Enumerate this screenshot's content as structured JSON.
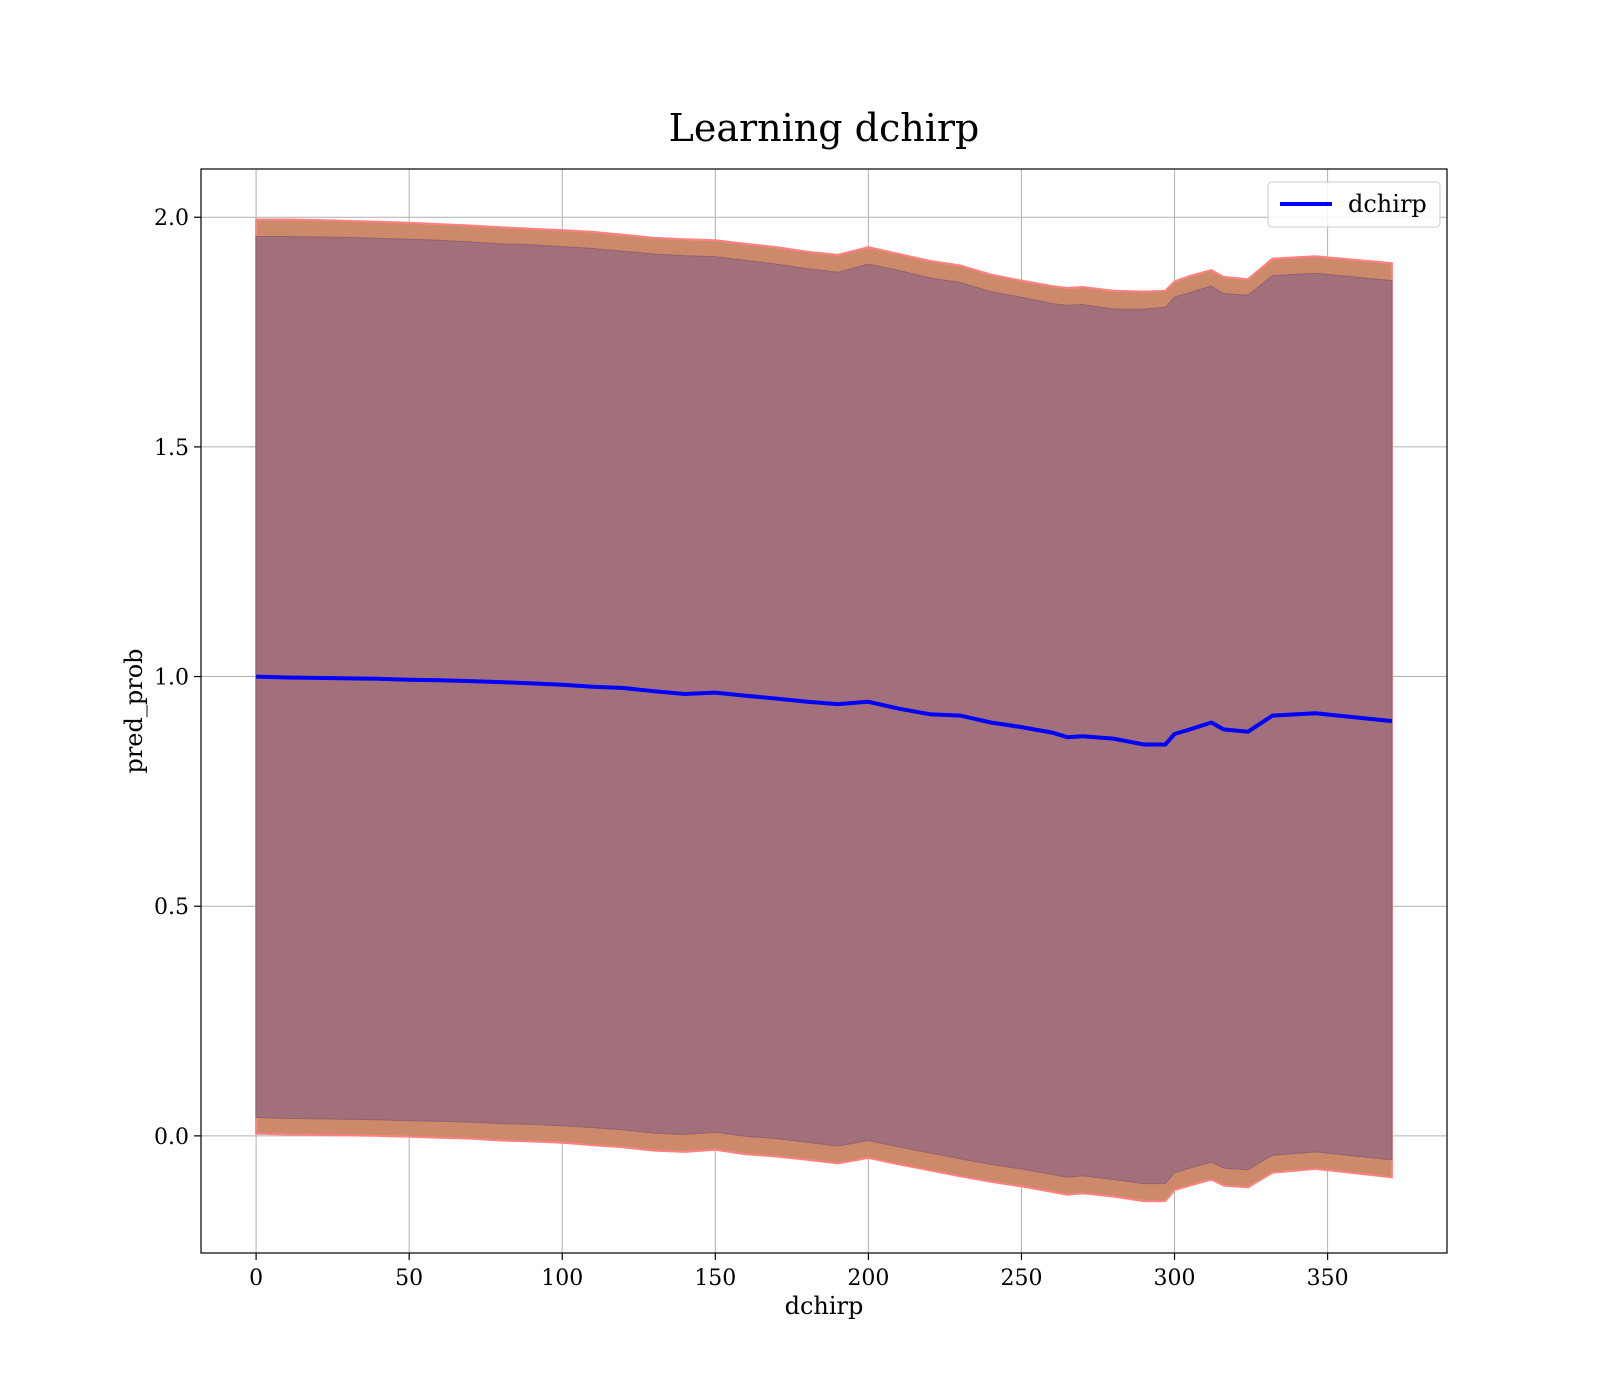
{
  "chart_data": {
    "type": "line",
    "title": "Learning dchirp",
    "xlabel": "dchirp",
    "ylabel": "pred_prob",
    "xlim": [
      -18,
      389
    ],
    "ylim": [
      -0.255,
      2.105
    ],
    "xticks": [
      "0",
      "50",
      "100",
      "150",
      "200",
      "250",
      "300",
      "350"
    ],
    "xtick_values": [
      0,
      50,
      100,
      150,
      200,
      250,
      300,
      350
    ],
    "yticks": [
      "0.0",
      "0.5",
      "1.0",
      "1.5",
      "2.0"
    ],
    "ytick_values": [
      0.0,
      0.5,
      1.0,
      1.5,
      2.0
    ],
    "grid": true,
    "legend_position": "top-right",
    "colors": {
      "line": "#0000ff",
      "outer_band": "#cd8a6a",
      "outer_band_edge": "#ff8080",
      "inner_band": "#a1707a",
      "grid": "#b0b0b0"
    },
    "series": [
      {
        "name": "dchirp",
        "x": [
          0,
          10,
          20,
          30,
          40,
          50,
          60,
          70,
          80,
          90,
          100,
          110,
          120,
          130,
          140,
          150,
          160,
          170,
          180,
          190,
          200,
          210,
          220,
          230,
          240,
          250,
          260,
          265,
          270,
          280,
          290,
          297,
          300,
          305,
          312,
          316,
          324,
          332,
          346,
          371
        ],
        "y": [
          1.0,
          0.998,
          0.997,
          0.996,
          0.995,
          0.993,
          0.992,
          0.99,
          0.988,
          0.985,
          0.982,
          0.978,
          0.975,
          0.968,
          0.962,
          0.965,
          0.958,
          0.952,
          0.945,
          0.94,
          0.945,
          0.93,
          0.918,
          0.915,
          0.9,
          0.89,
          0.878,
          0.868,
          0.87,
          0.865,
          0.852,
          0.852,
          0.875,
          0.885,
          0.9,
          0.885,
          0.88,
          0.915,
          0.92,
          0.903
        ]
      }
    ],
    "bands": [
      {
        "role": "outer",
        "upper": [
          1.995,
          1.995,
          1.994,
          1.992,
          1.99,
          1.988,
          1.985,
          1.982,
          1.978,
          1.975,
          1.972,
          1.968,
          1.962,
          1.955,
          1.952,
          1.95,
          1.942,
          1.935,
          1.925,
          1.918,
          1.935,
          1.92,
          1.905,
          1.895,
          1.875,
          1.862,
          1.85,
          1.846,
          1.848,
          1.84,
          1.838,
          1.84,
          1.86,
          1.872,
          1.885,
          1.87,
          1.865,
          1.91,
          1.915,
          1.9
        ],
        "lower": [
          0.005,
          0.003,
          0.002,
          0.001,
          0.0,
          -0.002,
          -0.004,
          -0.006,
          -0.01,
          -0.012,
          -0.015,
          -0.02,
          -0.025,
          -0.032,
          -0.035,
          -0.03,
          -0.04,
          -0.045,
          -0.052,
          -0.06,
          -0.048,
          -0.062,
          -0.075,
          -0.088,
          -0.1,
          -0.11,
          -0.122,
          -0.128,
          -0.125,
          -0.132,
          -0.142,
          -0.142,
          -0.118,
          -0.108,
          -0.095,
          -0.108,
          -0.112,
          -0.08,
          -0.072,
          -0.09
        ]
      },
      {
        "role": "inner",
        "upper": [
          1.958,
          1.958,
          1.957,
          1.956,
          1.954,
          1.952,
          1.95,
          1.946,
          1.942,
          1.94,
          1.936,
          1.932,
          1.926,
          1.92,
          1.916,
          1.914,
          1.906,
          1.898,
          1.888,
          1.88,
          1.898,
          1.884,
          1.868,
          1.858,
          1.838,
          1.826,
          1.812,
          1.808,
          1.81,
          1.8,
          1.8,
          1.804,
          1.826,
          1.836,
          1.85,
          1.834,
          1.83,
          1.873,
          1.878,
          1.862
        ],
        "lower": [
          0.04,
          0.038,
          0.037,
          0.036,
          0.035,
          0.033,
          0.032,
          0.03,
          0.027,
          0.025,
          0.022,
          0.018,
          0.013,
          0.006,
          0.003,
          0.008,
          -0.001,
          -0.006,
          -0.014,
          -0.022,
          -0.01,
          -0.024,
          -0.037,
          -0.05,
          -0.062,
          -0.072,
          -0.084,
          -0.09,
          -0.087,
          -0.095,
          -0.104,
          -0.104,
          -0.08,
          -0.07,
          -0.057,
          -0.07,
          -0.074,
          -0.042,
          -0.035,
          -0.052
        ]
      }
    ]
  }
}
